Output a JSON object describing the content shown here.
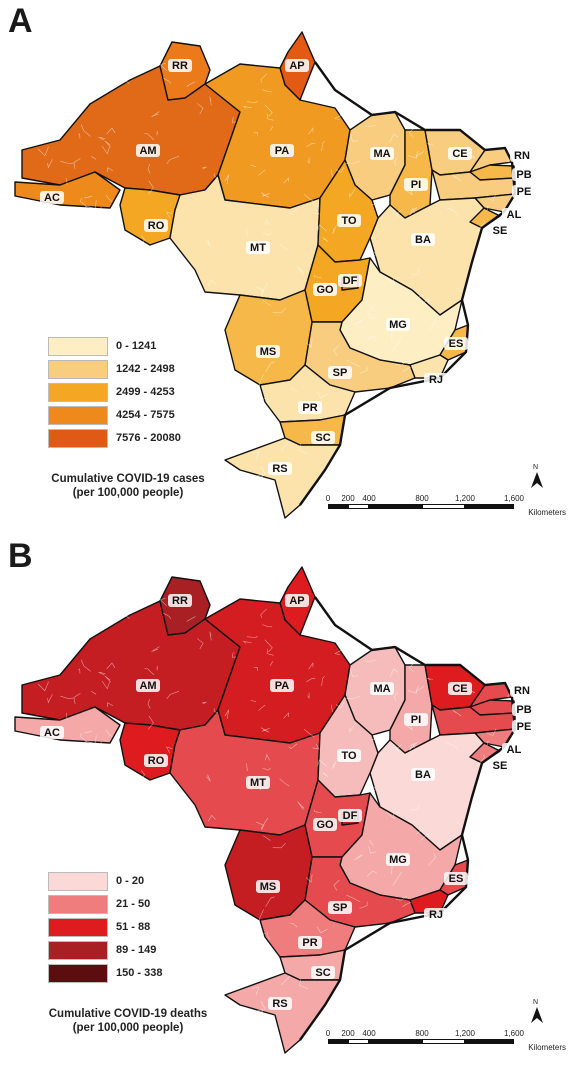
{
  "panels": [
    {
      "letter": "A",
      "legend_title_line1": "Cumulative COVID-19 cases",
      "legend_title_line2": "(per 100,000 people)",
      "legend": [
        {
          "label": "0 - 1241",
          "color": "#fdefc3"
        },
        {
          "label": "1242 - 2498",
          "color": "#f8cd80"
        },
        {
          "label": "2499 - 4253",
          "color": "#f4a722"
        },
        {
          "label": "4254 - 7575",
          "color": "#ee8a1c"
        },
        {
          "label": "7576 - 20080",
          "color": "#df5a14"
        }
      ],
      "state_colors": {
        "AM": "#e06a18",
        "RR": "#ea7a1a",
        "AP": "#e25a14",
        "PA": "#f09a22",
        "AC": "#ee8a1c",
        "RO": "#f4a722",
        "MT": "#fbe3ab",
        "MA": "#f8cd80",
        "PI": "#f6b848",
        "CE": "#f8cd80",
        "RN": "#f8cd80",
        "PB": "#f6b848",
        "PE": "#f8cd80",
        "AL": "#f8cd80",
        "SE": "#f6b848",
        "BA": "#fbe3ab",
        "TO": "#f4a722",
        "GO": "#f4a722",
        "DF": "#ee8a1c",
        "MG": "#fdefc3",
        "ES": "#f6b848",
        "RJ": "#fbe3ab",
        "SP": "#f8cd80",
        "MS": "#f6b848",
        "PR": "#fbe3ab",
        "SC": "#f6b848",
        "RS": "#fbe3ab"
      }
    },
    {
      "letter": "B",
      "legend_title_line1": "Cumulative COVID-19 deaths",
      "legend_title_line2": "(per 100,000 people)",
      "legend": [
        {
          "label": "0 - 20",
          "color": "#fbd9d6"
        },
        {
          "label": "21 - 50",
          "color": "#ef7d7e"
        },
        {
          "label": "51 - 88",
          "color": "#de1b1f"
        },
        {
          "label": "89 - 149",
          "color": "#a81f24"
        },
        {
          "label": "150 - 338",
          "color": "#5c0d10"
        }
      ],
      "state_colors": {
        "AM": "#c41d22",
        "RR": "#a81f24",
        "AP": "#de1b1f",
        "PA": "#d41d21",
        "AC": "#f4a9a8",
        "RO": "#de1b1f",
        "MT": "#e54b4e",
        "MA": "#f6bcbb",
        "PI": "#f4a9a8",
        "CE": "#de1b1f",
        "RN": "#e54b4e",
        "PB": "#e54b4e",
        "PE": "#e54b4e",
        "AL": "#ef7d7e",
        "SE": "#ef7d7e",
        "BA": "#fbd9d6",
        "TO": "#f6bcbb",
        "GO": "#e54b4e",
        "DF": "#c41d22",
        "MG": "#f4a9a8",
        "ES": "#e54b4e",
        "RJ": "#de1b1f",
        "SP": "#e54b4e",
        "MS": "#c41d22",
        "PR": "#ef7d7e",
        "SC": "#f4a9a8",
        "RS": "#f4a9a8"
      }
    }
  ],
  "states": [
    "AM",
    "RR",
    "AP",
    "PA",
    "AC",
    "RO",
    "MT",
    "MA",
    "PI",
    "CE",
    "RN",
    "PB",
    "PE",
    "AL",
    "SE",
    "BA",
    "TO",
    "GO",
    "DF",
    "MG",
    "ES",
    "RJ",
    "SP",
    "MS",
    "PR",
    "SC",
    "RS"
  ],
  "scale": {
    "ticks": [
      "0",
      "200",
      "400",
      "800",
      "1,200",
      "1,600"
    ],
    "unit": "Kilometers"
  },
  "north_label": "N"
}
